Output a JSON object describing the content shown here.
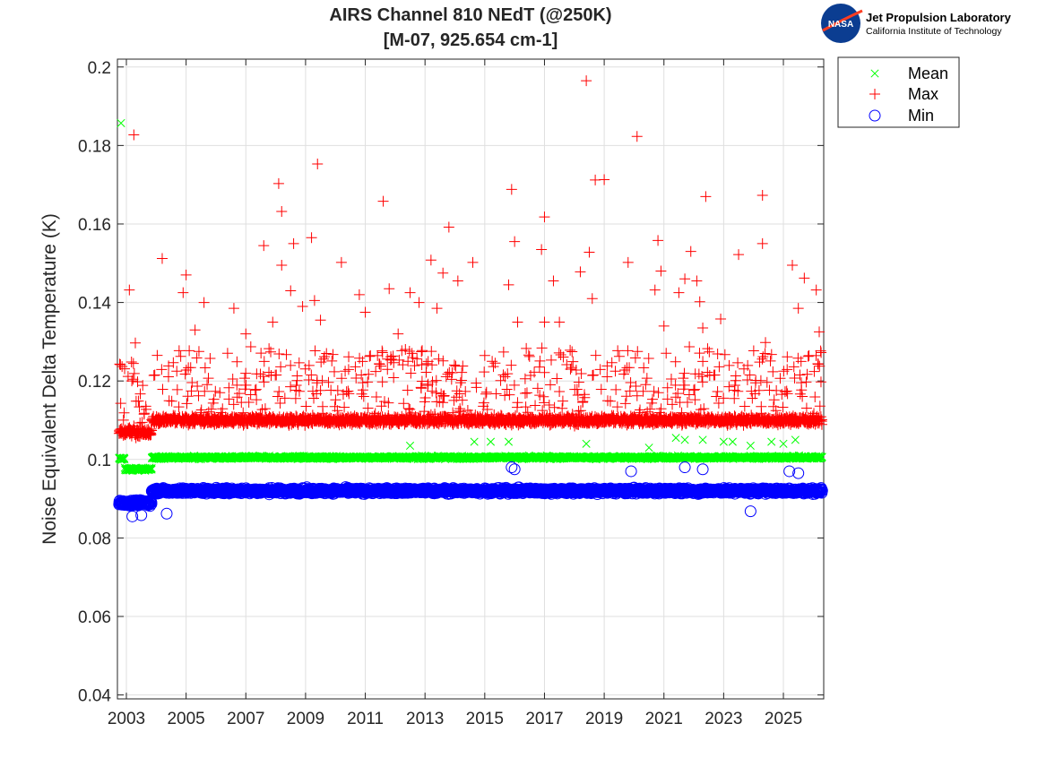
{
  "chart_data": {
    "type": "scatter",
    "title_lines": [
      "AIRS Channel 810 NEdT (@250K)",
      "[M-07, 925.654 cm-1]"
    ],
    "xlabel": "",
    "ylabel": "Noise Equivalent Delta Temperature (K)",
    "xlim": [
      2002.7,
      2026.35
    ],
    "ylim": [
      0.039,
      0.202
    ],
    "x_ticks": [
      2003,
      2005,
      2007,
      2009,
      2011,
      2013,
      2015,
      2017,
      2019,
      2021,
      2023,
      2025
    ],
    "x_tick_labels": [
      "2003",
      "2005",
      "2007",
      "2009",
      "2011",
      "2013",
      "2015",
      "2017",
      "2019",
      "2021",
      "2023",
      "2025"
    ],
    "y_ticks": [
      0.04,
      0.06,
      0.08,
      0.1,
      0.12,
      0.14,
      0.16,
      0.18,
      0.2
    ],
    "y_tick_labels": [
      "0.04",
      "0.06",
      "0.08",
      "0.1",
      "0.12",
      "0.14",
      "0.16",
      "0.18",
      "0.2"
    ],
    "grid": true,
    "legend_position": "outside-top-right",
    "series": [
      {
        "name": "Mean",
        "marker": "x",
        "color": "#00ff00",
        "segments": [
          {
            "x_start": 2002.75,
            "x_end": 2002.95,
            "value": 0.1002
          },
          {
            "x_start": 2002.95,
            "x_end": 2003.85,
            "value": 0.0975
          },
          {
            "x_start": 2003.85,
            "x_end": 2026.3,
            "value": 0.1005
          }
        ],
        "points": [
          {
            "x": 2002.82,
            "y": 0.1857
          },
          {
            "x": 2012.5,
            "y": 0.1035
          },
          {
            "x": 2014.65,
            "y": 0.1045
          },
          {
            "x": 2015.2,
            "y": 0.1045
          },
          {
            "x": 2015.8,
            "y": 0.1045
          },
          {
            "x": 2018.4,
            "y": 0.104
          },
          {
            "x": 2020.5,
            "y": 0.103
          },
          {
            "x": 2021.4,
            "y": 0.1055
          },
          {
            "x": 2021.7,
            "y": 0.105
          },
          {
            "x": 2022.3,
            "y": 0.105
          },
          {
            "x": 2023.0,
            "y": 0.1045
          },
          {
            "x": 2023.3,
            "y": 0.1045
          },
          {
            "x": 2023.9,
            "y": 0.1035
          },
          {
            "x": 2024.6,
            "y": 0.1045
          },
          {
            "x": 2025.0,
            "y": 0.104
          },
          {
            "x": 2025.4,
            "y": 0.105
          }
        ]
      },
      {
        "name": "Max",
        "marker": "+",
        "color": "#ff0000",
        "segments": [
          {
            "x_start": 2002.75,
            "x_end": 2003.85,
            "value": 0.107
          },
          {
            "x_start": 2003.85,
            "x_end": 2026.3,
            "value": 0.11
          }
        ],
        "points": [
          {
            "x": 2003.25,
            "y": 0.1827
          },
          {
            "x": 2003.1,
            "y": 0.1432
          },
          {
            "x": 2003.3,
            "y": 0.1297
          },
          {
            "x": 2004.2,
            "y": 0.1512
          },
          {
            "x": 2004.9,
            "y": 0.1425
          },
          {
            "x": 2005.0,
            "y": 0.147
          },
          {
            "x": 2005.3,
            "y": 0.133
          },
          {
            "x": 2005.6,
            "y": 0.14
          },
          {
            "x": 2006.6,
            "y": 0.1385
          },
          {
            "x": 2007.0,
            "y": 0.132
          },
          {
            "x": 2007.6,
            "y": 0.1545
          },
          {
            "x": 2007.9,
            "y": 0.135
          },
          {
            "x": 2008.1,
            "y": 0.1703
          },
          {
            "x": 2008.2,
            "y": 0.1632
          },
          {
            "x": 2008.2,
            "y": 0.1495
          },
          {
            "x": 2008.5,
            "y": 0.143
          },
          {
            "x": 2008.6,
            "y": 0.155
          },
          {
            "x": 2008.9,
            "y": 0.139
          },
          {
            "x": 2009.2,
            "y": 0.1565
          },
          {
            "x": 2009.3,
            "y": 0.1405
          },
          {
            "x": 2009.4,
            "y": 0.1753
          },
          {
            "x": 2009.5,
            "y": 0.1355
          },
          {
            "x": 2010.2,
            "y": 0.1502
          },
          {
            "x": 2010.8,
            "y": 0.142
          },
          {
            "x": 2011.0,
            "y": 0.1375
          },
          {
            "x": 2011.6,
            "y": 0.1658
          },
          {
            "x": 2011.8,
            "y": 0.1435
          },
          {
            "x": 2012.1,
            "y": 0.132
          },
          {
            "x": 2012.5,
            "y": 0.1425
          },
          {
            "x": 2012.8,
            "y": 0.14
          },
          {
            "x": 2013.2,
            "y": 0.1508
          },
          {
            "x": 2013.4,
            "y": 0.1385
          },
          {
            "x": 2013.6,
            "y": 0.1475
          },
          {
            "x": 2013.8,
            "y": 0.1592
          },
          {
            "x": 2014.1,
            "y": 0.1455
          },
          {
            "x": 2014.6,
            "y": 0.1502
          },
          {
            "x": 2015.0,
            "y": 0.1265
          },
          {
            "x": 2015.8,
            "y": 0.1445
          },
          {
            "x": 2015.9,
            "y": 0.1688
          },
          {
            "x": 2016.0,
            "y": 0.1555
          },
          {
            "x": 2016.1,
            "y": 0.135
          },
          {
            "x": 2016.9,
            "y": 0.1535
          },
          {
            "x": 2017.0,
            "y": 0.1618
          },
          {
            "x": 2017.0,
            "y": 0.135
          },
          {
            "x": 2017.3,
            "y": 0.1455
          },
          {
            "x": 2017.5,
            "y": 0.135
          },
          {
            "x": 2018.2,
            "y": 0.1478
          },
          {
            "x": 2018.4,
            "y": 0.1965
          },
          {
            "x": 2018.5,
            "y": 0.1528
          },
          {
            "x": 2018.6,
            "y": 0.141
          },
          {
            "x": 2018.7,
            "y": 0.1712
          },
          {
            "x": 2019.0,
            "y": 0.1713
          },
          {
            "x": 2019.8,
            "y": 0.1502
          },
          {
            "x": 2020.1,
            "y": 0.1823
          },
          {
            "x": 2020.7,
            "y": 0.1432
          },
          {
            "x": 2020.8,
            "y": 0.1558
          },
          {
            "x": 2020.9,
            "y": 0.148
          },
          {
            "x": 2021.0,
            "y": 0.134
          },
          {
            "x": 2021.5,
            "y": 0.1425
          },
          {
            "x": 2021.7,
            "y": 0.146
          },
          {
            "x": 2021.9,
            "y": 0.153
          },
          {
            "x": 2022.1,
            "y": 0.1455
          },
          {
            "x": 2022.2,
            "y": 0.1402
          },
          {
            "x": 2022.3,
            "y": 0.1335
          },
          {
            "x": 2022.4,
            "y": 0.167
          },
          {
            "x": 2022.9,
            "y": 0.1358
          },
          {
            "x": 2023.5,
            "y": 0.1522
          },
          {
            "x": 2024.3,
            "y": 0.1673
          },
          {
            "x": 2024.3,
            "y": 0.155
          },
          {
            "x": 2024.4,
            "y": 0.1298
          },
          {
            "x": 2025.3,
            "y": 0.1495
          },
          {
            "x": 2025.5,
            "y": 0.1385
          },
          {
            "x": 2025.7,
            "y": 0.1462
          },
          {
            "x": 2026.1,
            "y": 0.1432
          },
          {
            "x": 2026.2,
            "y": 0.1325
          }
        ]
      },
      {
        "name": "Min",
        "marker": "o",
        "color": "#0000ff",
        "segments": [
          {
            "x_start": 2002.75,
            "x_end": 2003.85,
            "value": 0.089
          },
          {
            "x_start": 2003.85,
            "x_end": 2026.3,
            "value": 0.092
          }
        ],
        "points": [
          {
            "x": 2004.35,
            "y": 0.0862
          },
          {
            "x": 2003.2,
            "y": 0.0855
          },
          {
            "x": 2003.5,
            "y": 0.0858
          },
          {
            "x": 2015.9,
            "y": 0.098
          },
          {
            "x": 2016.0,
            "y": 0.0975
          },
          {
            "x": 2019.9,
            "y": 0.097
          },
          {
            "x": 2021.7,
            "y": 0.098
          },
          {
            "x": 2022.3,
            "y": 0.0975
          },
          {
            "x": 2025.2,
            "y": 0.097
          },
          {
            "x": 2023.9,
            "y": 0.0868
          },
          {
            "x": 2025.5,
            "y": 0.0965
          }
        ]
      }
    ]
  },
  "logo": {
    "badge_text": "NASA",
    "line1": "Jet Propulsion Laboratory",
    "line2": "California Institute of Technology"
  }
}
